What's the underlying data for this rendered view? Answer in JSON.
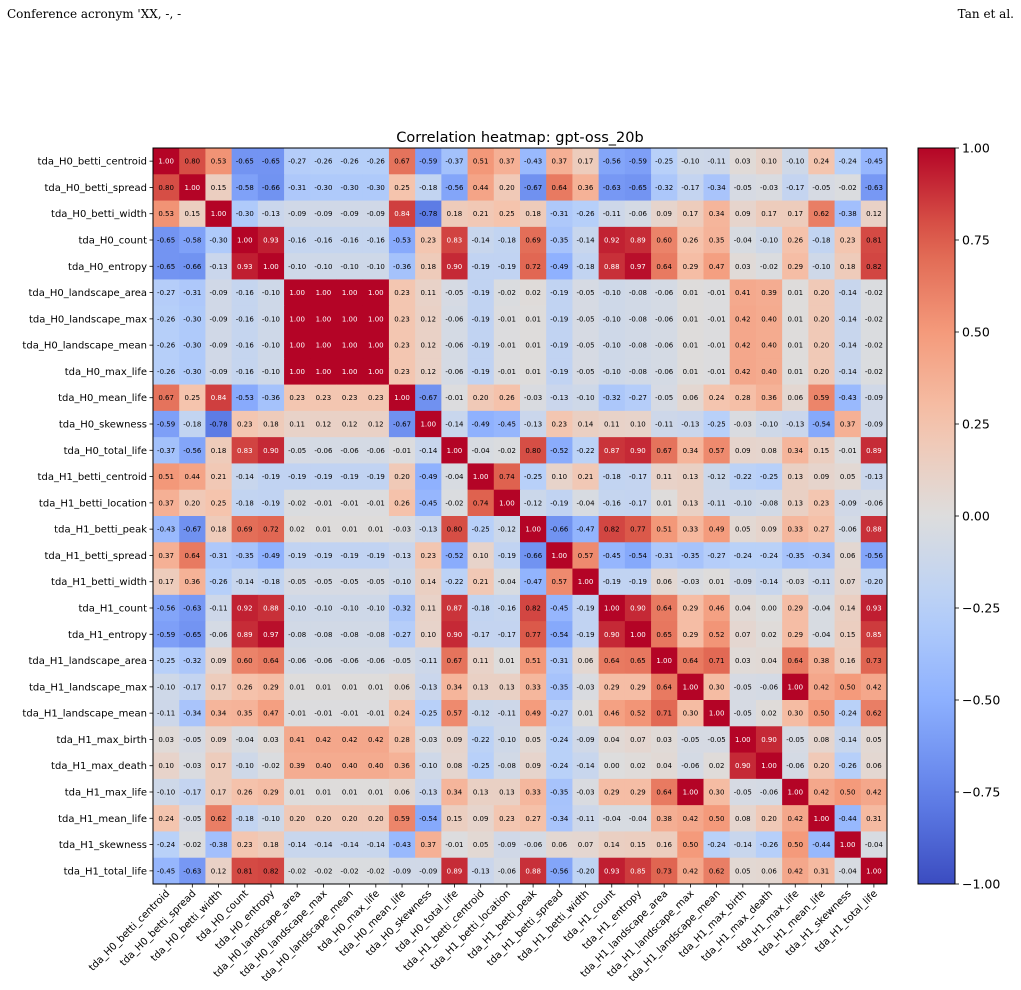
{
  "header": {
    "left": "Conference acronym 'XX, -, -",
    "right": "Tan et al."
  },
  "chart_data": {
    "type": "heatmap",
    "title": "Correlation heatmap: gpt-oss_20b",
    "colormap": "coolwarm",
    "vmin": -1.0,
    "vmax": 1.0,
    "colorbar_ticks": [
      "1.00",
      "0.75",
      "0.50",
      "0.25",
      "0.00",
      "−0.25",
      "−0.50",
      "−0.75",
      "−1.00"
    ],
    "colorbar_values": [
      1.0,
      0.75,
      0.5,
      0.25,
      0.0,
      -0.25,
      -0.5,
      -0.75,
      -1.0
    ],
    "labels": [
      "tda_H0_betti_centroid",
      "tda_H0_betti_spread",
      "tda_H0_betti_width",
      "tda_H0_count",
      "tda_H0_entropy",
      "tda_H0_landscape_area",
      "tda_H0_landscape_max",
      "tda_H0_landscape_mean",
      "tda_H0_max_life",
      "tda_H0_mean_life",
      "tda_H0_skewness",
      "tda_H0_total_life",
      "tda_H1_betti_centroid",
      "tda_H1_betti_location",
      "tda_H1_betti_peak",
      "tda_H1_betti_spread",
      "tda_H1_betti_width",
      "tda_H1_count",
      "tda_H1_entropy",
      "tda_H1_landscape_area",
      "tda_H1_landscape_max",
      "tda_H1_landscape_mean",
      "tda_H1_max_birth",
      "tda_H1_max_death",
      "tda_H1_max_life",
      "tda_H1_mean_life",
      "tda_H1_skewness",
      "tda_H1_total_life"
    ],
    "matrix": [
      [
        1.0,
        0.8,
        0.53,
        -0.65,
        -0.65,
        -0.27,
        -0.26,
        -0.26,
        -0.26,
        0.67,
        -0.59,
        -0.37,
        0.51,
        0.37,
        -0.43,
        0.37,
        0.17,
        -0.56,
        -0.59,
        -0.25,
        -0.1,
        -0.11,
        0.03,
        0.1,
        -0.1,
        0.24,
        -0.24,
        -0.45
      ],
      [
        0.8,
        1.0,
        0.15,
        -0.58,
        -0.66,
        -0.31,
        -0.3,
        -0.3,
        -0.3,
        0.25,
        -0.18,
        -0.56,
        0.44,
        0.2,
        -0.67,
        0.64,
        0.36,
        -0.63,
        -0.65,
        -0.32,
        -0.17,
        -0.34,
        -0.05,
        -0.03,
        -0.17,
        -0.05,
        -0.02,
        -0.63
      ],
      [
        0.53,
        0.15,
        1.0,
        -0.3,
        -0.13,
        -0.09,
        -0.09,
        -0.09,
        -0.09,
        0.84,
        -0.78,
        0.18,
        0.21,
        0.25,
        0.18,
        -0.31,
        -0.26,
        -0.11,
        -0.06,
        0.09,
        0.17,
        0.34,
        0.09,
        0.17,
        0.17,
        0.62,
        -0.38,
        0.12
      ],
      [
        -0.65,
        -0.58,
        -0.3,
        1.0,
        0.93,
        -0.16,
        -0.16,
        -0.16,
        -0.16,
        -0.53,
        0.23,
        0.83,
        -0.14,
        -0.18,
        0.69,
        -0.35,
        -0.14,
        0.92,
        0.89,
        0.6,
        0.26,
        0.35,
        -0.04,
        -0.1,
        0.26,
        -0.18,
        0.23,
        0.81
      ],
      [
        -0.65,
        -0.66,
        -0.13,
        0.93,
        1.0,
        -0.1,
        -0.1,
        -0.1,
        -0.1,
        -0.36,
        0.18,
        0.9,
        -0.19,
        -0.19,
        0.72,
        -0.49,
        -0.18,
        0.88,
        0.97,
        0.64,
        0.29,
        0.47,
        0.03,
        -0.02,
        0.29,
        -0.1,
        0.18,
        0.82
      ],
      [
        -0.27,
        -0.31,
        -0.09,
        -0.16,
        -0.1,
        1.0,
        1.0,
        1.0,
        1.0,
        0.23,
        0.11,
        -0.05,
        -0.19,
        -0.02,
        0.02,
        -0.19,
        -0.05,
        -0.1,
        -0.08,
        -0.06,
        0.01,
        -0.01,
        0.41,
        0.39,
        0.01,
        0.2,
        -0.14,
        -0.02
      ],
      [
        -0.26,
        -0.3,
        -0.09,
        -0.16,
        -0.1,
        1.0,
        1.0,
        1.0,
        1.0,
        0.23,
        0.12,
        -0.06,
        -0.19,
        -0.01,
        0.01,
        -0.19,
        -0.05,
        -0.1,
        -0.08,
        -0.06,
        0.01,
        -0.01,
        0.42,
        0.4,
        0.01,
        0.2,
        -0.14,
        -0.02
      ],
      [
        -0.26,
        -0.3,
        -0.09,
        -0.16,
        -0.1,
        1.0,
        1.0,
        1.0,
        1.0,
        0.23,
        0.12,
        -0.06,
        -0.19,
        -0.01,
        0.01,
        -0.19,
        -0.05,
        -0.1,
        -0.08,
        -0.06,
        0.01,
        -0.01,
        0.42,
        0.4,
        0.01,
        0.2,
        -0.14,
        -0.02
      ],
      [
        -0.26,
        -0.3,
        -0.09,
        -0.16,
        -0.1,
        1.0,
        1.0,
        1.0,
        1.0,
        0.23,
        0.12,
        -0.06,
        -0.19,
        -0.01,
        0.01,
        -0.19,
        -0.05,
        -0.1,
        -0.08,
        -0.06,
        0.01,
        -0.01,
        0.42,
        0.4,
        0.01,
        0.2,
        -0.14,
        -0.02
      ],
      [
        0.67,
        0.25,
        0.84,
        -0.53,
        -0.36,
        0.23,
        0.23,
        0.23,
        0.23,
        1.0,
        -0.67,
        -0.01,
        0.2,
        0.26,
        -0.03,
        -0.13,
        -0.1,
        -0.32,
        -0.27,
        -0.05,
        0.06,
        0.24,
        0.28,
        0.36,
        0.06,
        0.59,
        -0.43,
        -0.09
      ],
      [
        -0.59,
        -0.18,
        -0.78,
        0.23,
        0.18,
        0.11,
        0.12,
        0.12,
        0.12,
        -0.67,
        1.0,
        -0.14,
        -0.49,
        -0.45,
        -0.13,
        0.23,
        0.14,
        0.11,
        0.1,
        -0.11,
        -0.13,
        -0.25,
        -0.03,
        -0.1,
        -0.13,
        -0.54,
        0.37,
        -0.09
      ],
      [
        -0.37,
        -0.56,
        0.18,
        0.83,
        0.9,
        -0.05,
        -0.06,
        -0.06,
        -0.06,
        -0.01,
        -0.14,
        1.0,
        -0.04,
        -0.02,
        0.8,
        -0.52,
        -0.22,
        0.87,
        0.9,
        0.67,
        0.34,
        0.57,
        0.09,
        0.08,
        0.34,
        0.15,
        -0.01,
        0.89
      ],
      [
        0.51,
        0.44,
        0.21,
        -0.14,
        -0.19,
        -0.19,
        -0.19,
        -0.19,
        -0.19,
        0.2,
        -0.49,
        -0.04,
        1.0,
        0.74,
        -0.25,
        0.1,
        0.21,
        -0.18,
        -0.17,
        0.11,
        0.13,
        -0.12,
        -0.22,
        -0.25,
        0.13,
        0.09,
        0.05,
        -0.13
      ],
      [
        0.37,
        0.2,
        0.25,
        -0.18,
        -0.19,
        -0.02,
        -0.01,
        -0.01,
        -0.01,
        0.26,
        -0.45,
        -0.02,
        0.74,
        1.0,
        -0.12,
        -0.19,
        -0.04,
        -0.16,
        -0.17,
        0.01,
        0.13,
        -0.11,
        -0.1,
        -0.08,
        0.13,
        0.23,
        -0.09,
        -0.06
      ],
      [
        -0.43,
        -0.67,
        0.18,
        0.69,
        0.72,
        0.02,
        0.01,
        0.01,
        0.01,
        -0.03,
        -0.13,
        0.8,
        -0.25,
        -0.12,
        1.0,
        -0.66,
        -0.47,
        0.82,
        0.77,
        0.51,
        0.33,
        0.49,
        0.05,
        0.09,
        0.33,
        0.27,
        -0.06,
        0.88
      ],
      [
        0.37,
        0.64,
        -0.31,
        -0.35,
        -0.49,
        -0.19,
        -0.19,
        -0.19,
        -0.19,
        -0.13,
        0.23,
        -0.52,
        0.1,
        -0.19,
        -0.66,
        1.0,
        0.57,
        -0.45,
        -0.54,
        -0.31,
        -0.35,
        -0.27,
        -0.24,
        -0.24,
        -0.35,
        -0.34,
        0.06,
        -0.56
      ],
      [
        0.17,
        0.36,
        -0.26,
        -0.14,
        -0.18,
        -0.05,
        -0.05,
        -0.05,
        -0.05,
        -0.1,
        0.14,
        -0.22,
        0.21,
        -0.04,
        -0.47,
        0.57,
        1.0,
        -0.19,
        -0.19,
        0.06,
        -0.03,
        0.01,
        -0.09,
        -0.14,
        -0.03,
        -0.11,
        0.07,
        -0.2
      ],
      [
        -0.56,
        -0.63,
        -0.11,
        0.92,
        0.88,
        -0.1,
        -0.1,
        -0.1,
        -0.1,
        -0.32,
        0.11,
        0.87,
        -0.18,
        -0.16,
        0.82,
        -0.45,
        -0.19,
        1.0,
        0.9,
        0.64,
        0.29,
        0.46,
        0.04,
        0.0,
        0.29,
        -0.04,
        0.14,
        0.93
      ],
      [
        -0.59,
        -0.65,
        -0.06,
        0.89,
        0.97,
        -0.08,
        -0.08,
        -0.08,
        -0.08,
        -0.27,
        0.1,
        0.9,
        -0.17,
        -0.17,
        0.77,
        -0.54,
        -0.19,
        0.9,
        1.0,
        0.65,
        0.29,
        0.52,
        0.07,
        0.02,
        0.29,
        -0.04,
        0.15,
        0.85
      ],
      [
        -0.25,
        -0.32,
        0.09,
        0.6,
        0.64,
        -0.06,
        -0.06,
        -0.06,
        -0.06,
        -0.05,
        -0.11,
        0.67,
        0.11,
        0.01,
        0.51,
        -0.31,
        0.06,
        0.64,
        0.65,
        1.0,
        0.64,
        0.71,
        0.03,
        0.04,
        0.64,
        0.38,
        0.16,
        0.73
      ],
      [
        -0.1,
        -0.17,
        0.17,
        0.26,
        0.29,
        0.01,
        0.01,
        0.01,
        0.01,
        0.06,
        -0.13,
        0.34,
        0.13,
        0.13,
        0.33,
        -0.35,
        -0.03,
        0.29,
        0.29,
        0.64,
        1.0,
        0.3,
        -0.05,
        -0.06,
        1.0,
        0.42,
        0.5,
        0.42
      ],
      [
        -0.11,
        -0.34,
        0.34,
        0.35,
        0.47,
        -0.01,
        -0.01,
        -0.01,
        -0.01,
        0.24,
        -0.25,
        0.57,
        -0.12,
        -0.11,
        0.49,
        -0.27,
        0.01,
        0.46,
        0.52,
        0.71,
        0.3,
        1.0,
        -0.05,
        0.02,
        0.3,
        0.5,
        -0.24,
        0.62
      ],
      [
        0.03,
        -0.05,
        0.09,
        -0.04,
        0.03,
        0.41,
        0.42,
        0.42,
        0.42,
        0.28,
        -0.03,
        0.09,
        -0.22,
        -0.1,
        0.05,
        -0.24,
        -0.09,
        0.04,
        0.07,
        0.03,
        -0.05,
        -0.05,
        1.0,
        0.9,
        -0.05,
        0.08,
        -0.14,
        0.05
      ],
      [
        0.1,
        -0.03,
        0.17,
        -0.1,
        -0.02,
        0.39,
        0.4,
        0.4,
        0.4,
        0.36,
        -0.1,
        0.08,
        -0.25,
        -0.08,
        0.09,
        -0.24,
        -0.14,
        0.0,
        0.02,
        0.04,
        -0.06,
        0.02,
        0.9,
        1.0,
        -0.06,
        0.2,
        -0.26,
        0.06
      ],
      [
        -0.1,
        -0.17,
        0.17,
        0.26,
        0.29,
        0.01,
        0.01,
        0.01,
        0.01,
        0.06,
        -0.13,
        0.34,
        0.13,
        0.13,
        0.33,
        -0.35,
        -0.03,
        0.29,
        0.29,
        0.64,
        1.0,
        0.3,
        -0.05,
        -0.06,
        1.0,
        0.42,
        0.5,
        0.42
      ],
      [
        0.24,
        -0.05,
        0.62,
        -0.18,
        -0.1,
        0.2,
        0.2,
        0.2,
        0.2,
        0.59,
        -0.54,
        0.15,
        0.09,
        0.23,
        0.27,
        -0.34,
        -0.11,
        -0.04,
        -0.04,
        0.38,
        0.42,
        0.5,
        0.08,
        0.2,
        0.42,
        1.0,
        -0.44,
        0.31
      ],
      [
        -0.24,
        -0.02,
        -0.38,
        0.23,
        0.18,
        -0.14,
        -0.14,
        -0.14,
        -0.14,
        -0.43,
        0.37,
        -0.01,
        0.05,
        -0.09,
        -0.06,
        0.06,
        0.07,
        0.14,
        0.15,
        0.16,
        0.5,
        -0.24,
        -0.14,
        -0.26,
        0.5,
        -0.44,
        1.0,
        -0.04
      ],
      [
        -0.45,
        -0.63,
        0.12,
        0.81,
        0.82,
        -0.02,
        -0.02,
        -0.02,
        -0.02,
        -0.09,
        -0.09,
        0.89,
        -0.13,
        -0.06,
        0.88,
        -0.56,
        -0.2,
        0.93,
        0.85,
        0.73,
        0.42,
        0.62,
        0.05,
        0.06,
        0.42,
        0.31,
        -0.04,
        1.0
      ]
    ]
  }
}
